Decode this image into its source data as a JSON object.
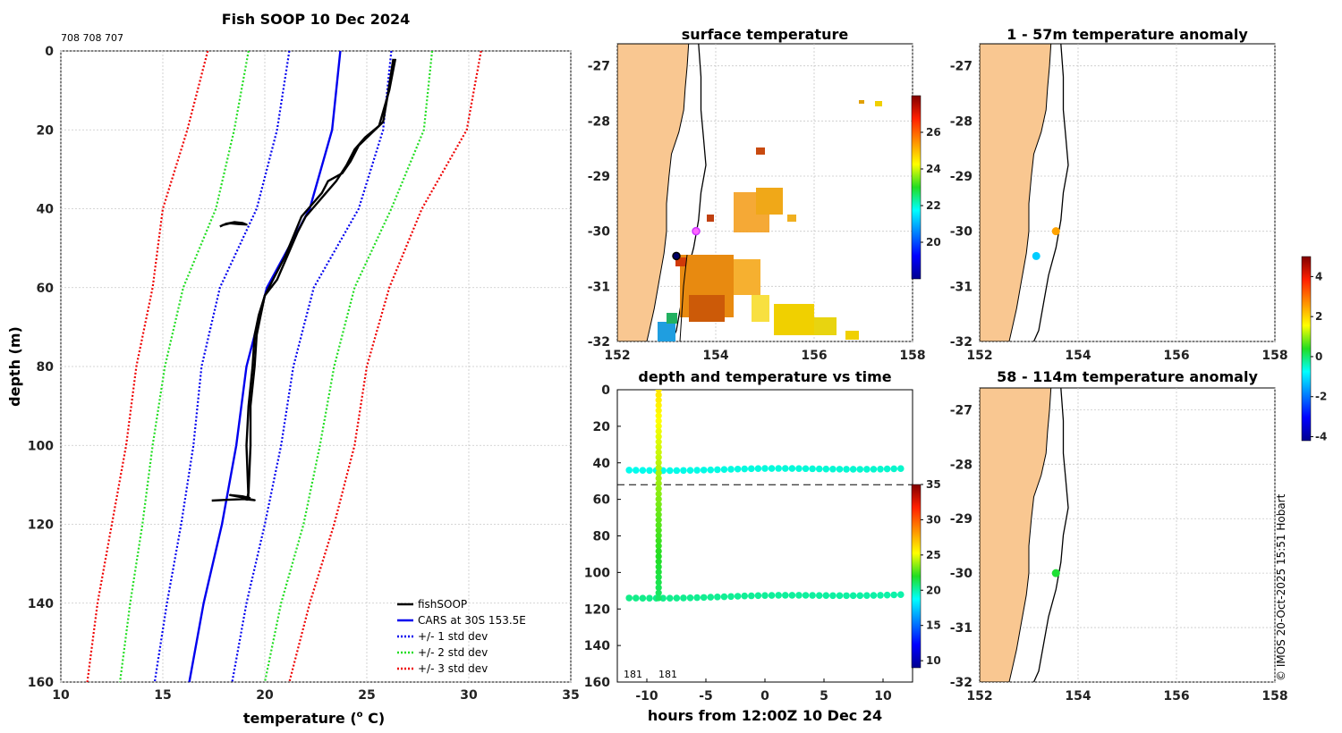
{
  "chart_data": [
    {
      "type": "line",
      "title": "Fish SOOP 10 Dec 2024",
      "annotation": "708 708 707",
      "xlabel": "temperature (",
      "xlabel_unit": "C)",
      "xlabel_sup": "o",
      "ylabel": "depth (m)",
      "xlim": [
        10,
        35
      ],
      "ylim": [
        0,
        160
      ],
      "xticks": [
        "10",
        "15",
        "20",
        "25",
        "30",
        "35"
      ],
      "yticks": [
        "0",
        "20",
        "40",
        "60",
        "80",
        "100",
        "120",
        "140",
        "160"
      ],
      "legend": [
        "fishSOOP",
        "CARS at 30S 153.5E",
        "+/- 1 std dev",
        "+/- 2 std dev",
        "+/- 3 std dev"
      ],
      "legend_position": "bottom-right",
      "series": [
        {
          "name": "CARS",
          "color": "#0000ee",
          "style": "solid",
          "points": [
            [
              23.7,
              0
            ],
            [
              23.3,
              20
            ],
            [
              22.2,
              40
            ],
            [
              20.1,
              60
            ],
            [
              19.1,
              80
            ],
            [
              18.6,
              100
            ],
            [
              17.9,
              120
            ],
            [
              17,
              140
            ],
            [
              16.3,
              160
            ]
          ]
        },
        {
          "name": "cars-plus-1",
          "color": "#0000ee",
          "style": "dotted",
          "points": [
            [
              26.2,
              0
            ],
            [
              25.8,
              20
            ],
            [
              24.6,
              40
            ],
            [
              22.4,
              60
            ],
            [
              21.4,
              80
            ],
            [
              20.8,
              100
            ],
            [
              20,
              120
            ],
            [
              19.1,
              140
            ],
            [
              18.4,
              160
            ]
          ]
        },
        {
          "name": "cars-minus-1",
          "color": "#0000ee",
          "style": "dotted",
          "points": [
            [
              21.2,
              0
            ],
            [
              20.6,
              20
            ],
            [
              19.6,
              40
            ],
            [
              17.8,
              60
            ],
            [
              16.9,
              80
            ],
            [
              16.5,
              100
            ],
            [
              15.9,
              120
            ],
            [
              15.2,
              140
            ],
            [
              14.6,
              160
            ]
          ]
        },
        {
          "name": "cars-plus-2",
          "color": "#22dd22",
          "style": "dotted",
          "points": [
            [
              28.2,
              0
            ],
            [
              27.8,
              20
            ],
            [
              26.2,
              40
            ],
            [
              24.4,
              60
            ],
            [
              23.4,
              80
            ],
            [
              22.7,
              100
            ],
            [
              21.9,
              120
            ],
            [
              20.8,
              140
            ],
            [
              20,
              160
            ]
          ]
        },
        {
          "name": "cars-minus-2",
          "color": "#22dd22",
          "style": "dotted",
          "points": [
            [
              19.2,
              0
            ],
            [
              18.5,
              20
            ],
            [
              17.6,
              40
            ],
            [
              16,
              60
            ],
            [
              15.1,
              80
            ],
            [
              14.5,
              100
            ],
            [
              14,
              120
            ],
            [
              13.4,
              140
            ],
            [
              12.9,
              160
            ]
          ]
        },
        {
          "name": "cars-plus-3",
          "color": "#ee0000",
          "style": "dotted",
          "points": [
            [
              30.6,
              0
            ],
            [
              29.9,
              20
            ],
            [
              27.7,
              40
            ],
            [
              26.1,
              60
            ],
            [
              25,
              80
            ],
            [
              24.4,
              100
            ],
            [
              23.4,
              120
            ],
            [
              22.2,
              140
            ],
            [
              21.2,
              160
            ]
          ]
        },
        {
          "name": "cars-minus-3",
          "color": "#ee0000",
          "style": "dotted",
          "points": [
            [
              17.2,
              0
            ],
            [
              16.2,
              20
            ],
            [
              15,
              40
            ],
            [
              14.5,
              60
            ],
            [
              13.7,
              80
            ],
            [
              13.2,
              100
            ],
            [
              12.5,
              120
            ],
            [
              11.8,
              140
            ],
            [
              11.3,
              160
            ]
          ]
        },
        {
          "name": "fishSOOP-down",
          "color": "#000000",
          "style": "solid",
          "points": [
            [
              26.3,
              2
            ],
            [
              26,
              12
            ],
            [
              25.8,
              18
            ],
            [
              25.2,
              21
            ],
            [
              24.6,
              24
            ],
            [
              24.2,
              28
            ],
            [
              23.8,
              31
            ],
            [
              23.1,
              33
            ],
            [
              22.8,
              36
            ],
            [
              22.3,
              39
            ],
            [
              21.8,
              42
            ],
            [
              21.4,
              47
            ],
            [
              21,
              52
            ],
            [
              20.5,
              57
            ],
            [
              20,
              62
            ],
            [
              19.8,
              67
            ],
            [
              19.6,
              72
            ],
            [
              19.5,
              80
            ],
            [
              19.3,
              90
            ],
            [
              19.3,
              100
            ],
            [
              19.2,
              112
            ],
            [
              19.1,
              114
            ]
          ]
        },
        {
          "name": "fishSOOP-up",
          "color": "#000000",
          "style": "solid",
          "points": [
            [
              19.2,
              114
            ],
            [
              19.1,
              100
            ],
            [
              19.2,
              90
            ],
            [
              19.4,
              80
            ],
            [
              19.5,
              72
            ],
            [
              19.7,
              67
            ],
            [
              20,
              62
            ],
            [
              20.6,
              58
            ],
            [
              21.1,
              52
            ],
            [
              21.6,
              46
            ],
            [
              22,
              42
            ],
            [
              22.5,
              39
            ],
            [
              23,
              36
            ],
            [
              23.5,
              33
            ],
            [
              24,
              29
            ],
            [
              24.4,
              25
            ],
            [
              24.9,
              22
            ],
            [
              25.6,
              19
            ],
            [
              26.1,
              10
            ],
            [
              26.4,
              2
            ]
          ]
        },
        {
          "name": "fishSOOP-surface",
          "color": "#000000",
          "style": "solid",
          "points": [
            [
              17.8,
              44.5
            ],
            [
              18.1,
              43.8
            ],
            [
              18.5,
              43.4
            ],
            [
              18.9,
              43.6
            ],
            [
              19.1,
              44
            ],
            [
              18.7,
              43.9
            ],
            [
              18.3,
              43.7
            ],
            [
              17.9,
              44.2
            ]
          ]
        },
        {
          "name": "fishSOOP-bottom",
          "color": "#000000",
          "style": "solid",
          "points": [
            [
              17.4,
              114
            ],
            [
              18.2,
              113.8
            ],
            [
              19,
              113.6
            ],
            [
              19.5,
              113.9
            ],
            [
              18.9,
              113.2
            ],
            [
              18.3,
              112.6
            ],
            [
              18.9,
              112.9
            ],
            [
              19.3,
              113.4
            ]
          ]
        }
      ]
    },
    {
      "type": "heatmap",
      "title": "surface temperature",
      "xlim": [
        152,
        158
      ],
      "ylim": [
        -32,
        -26.6
      ],
      "xticks": [
        "152",
        "154",
        "156",
        "158"
      ],
      "yticks": [
        "-27",
        "-28",
        "-29",
        "-30",
        "-31",
        "-32"
      ],
      "colorbar": {
        "min": 18,
        "max": 28,
        "ticks": [
          "20",
          "22",
          "24",
          "26"
        ]
      },
      "markers": [
        {
          "lon": 153.6,
          "lat": -30.0,
          "color": "#cc33ff"
        },
        {
          "lon": 153.2,
          "lat": -30.45,
          "color": "#000066"
        }
      ]
    },
    {
      "type": "scatter",
      "title": "depth and temperature vs time",
      "xlabel": "hours from 12:00Z 10 Dec 24",
      "xlim": [
        -12.5,
        12.5
      ],
      "ylim": [
        0,
        160
      ],
      "xticks": [
        "-10",
        "-5",
        "0",
        "5",
        "10"
      ],
      "yticks": [
        "0",
        "20",
        "40",
        "60",
        "80",
        "100",
        "120",
        "140",
        "160"
      ],
      "reference_depth": 52,
      "annotations": [
        "181",
        "181"
      ],
      "colorbar": {
        "min": 9,
        "max": 35,
        "ticks": [
          "10",
          "15",
          "20",
          "25",
          "30",
          "35"
        ]
      },
      "series": [
        {
          "name": "surface-tow",
          "hours": [
            -11.5,
            11.5
          ],
          "depth": [
            44,
            43
          ],
          "temperature": [
            19,
            19.5
          ]
        },
        {
          "name": "bottom-tow",
          "hours": [
            -11.5,
            11.5
          ],
          "depth": [
            114,
            112
          ],
          "temperature": [
            20.5,
            20
          ]
        },
        {
          "name": "cast",
          "hours": [
            -9,
            -9
          ],
          "depth": [
            0,
            114
          ],
          "temperature": [
            26,
            21
          ]
        }
      ]
    },
    {
      "type": "scatter",
      "title": "1 - 57m temperature anomaly",
      "xlim": [
        152,
        158
      ],
      "ylim": [
        -32,
        -26.6
      ],
      "xticks": [
        "152",
        "154",
        "156",
        "158"
      ],
      "yticks": [
        "-27",
        "-28",
        "-29",
        "-30",
        "-31",
        "-32"
      ],
      "points": [
        {
          "lon": 153.55,
          "lat": -30.0,
          "anomaly": 2.5
        },
        {
          "lon": 153.15,
          "lat": -30.45,
          "anomaly": -1.2
        }
      ]
    },
    {
      "type": "scatter",
      "title": "58 - 114m temperature anomaly",
      "xlim": [
        152,
        158
      ],
      "ylim": [
        -32,
        -26.6
      ],
      "xticks": [
        "152",
        "154",
        "156",
        "158"
      ],
      "yticks": [
        "-27",
        "-28",
        "-29",
        "-30",
        "-31",
        "-32"
      ],
      "points": [
        {
          "lon": 153.55,
          "lat": -30.0,
          "anomaly": 0.3
        }
      ],
      "colorbar": {
        "min": -4.2,
        "max": 5,
        "ticks": [
          "4",
          "2",
          "0",
          "-2",
          "-4"
        ]
      }
    }
  ],
  "credit": "© IMOS 20-Oct-2025 15:51 Hobart",
  "colors": {
    "land": "#f9c791",
    "grid": "#c8c8c8",
    "axis": "#000000"
  }
}
